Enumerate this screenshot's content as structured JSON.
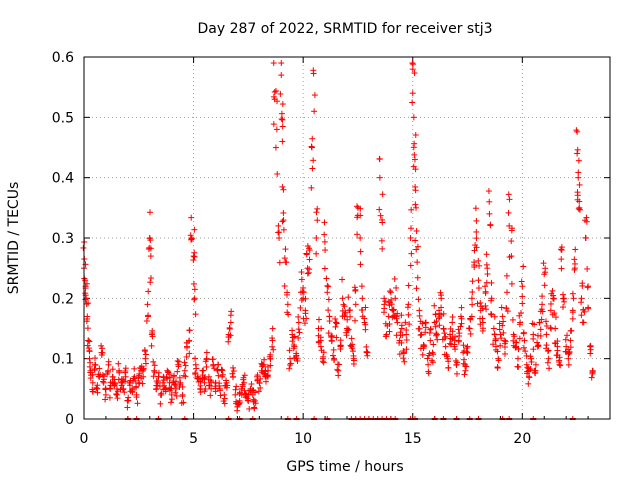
{
  "chart_data": {
    "type": "scatter",
    "title": "Day 287 of 2022, SRMTID for receiver stj3",
    "xlabel": "GPS time / hours",
    "ylabel": "SRMTID / TECUs",
    "xlim": [
      0,
      24
    ],
    "ylim": [
      0,
      0.6
    ],
    "xticks": [
      0,
      5,
      10,
      15,
      20
    ],
    "xtick_labels": [
      "0",
      "5",
      "10",
      "15",
      "20"
    ],
    "yticks": [
      0,
      0.1,
      0.2,
      0.3,
      0.4,
      0.5,
      0.6
    ],
    "ytick_labels": [
      "0",
      "0.1",
      "0.2",
      "0.3",
      "0.4",
      "0.5",
      "0.6"
    ],
    "grid": true,
    "marker": "+",
    "color": "#ff0000",
    "series": [
      {
        "name": "SRMTID",
        "points": [
          [
            0.0,
            0.25
          ],
          [
            0.05,
            0.23
          ],
          [
            0.1,
            0.2
          ],
          [
            0.15,
            0.17
          ],
          [
            0.2,
            0.13
          ],
          [
            0.25,
            0.1
          ],
          [
            0.3,
            0.08
          ],
          [
            0.4,
            0.06
          ],
          [
            0.5,
            0.09
          ],
          [
            0.6,
            0.05
          ],
          [
            0.7,
            0.07
          ],
          [
            0.8,
            0.11
          ],
          [
            0.9,
            0.06
          ],
          [
            1.0,
            0.04
          ],
          [
            1.1,
            0.08
          ],
          [
            1.2,
            0.05
          ],
          [
            1.3,
            0.07
          ],
          [
            1.4,
            0.06
          ],
          [
            1.5,
            0.04
          ],
          [
            1.6,
            0.08
          ],
          [
            1.7,
            0.06
          ],
          [
            1.8,
            0.05
          ],
          [
            1.9,
            0.07
          ],
          [
            2.0,
            0.03
          ],
          [
            2.1,
            0.06
          ],
          [
            2.2,
            0.05
          ],
          [
            2.3,
            0.07
          ],
          [
            2.4,
            0.04
          ],
          [
            2.5,
            0.06
          ],
          [
            2.6,
            0.08
          ],
          [
            2.7,
            0.07
          ],
          [
            2.8,
            0.1
          ],
          [
            2.9,
            0.19
          ],
          [
            3.0,
            0.3
          ],
          [
            3.05,
            0.27
          ],
          [
            3.1,
            0.14
          ],
          [
            3.2,
            0.08
          ],
          [
            3.3,
            0.05
          ],
          [
            3.4,
            0.07
          ],
          [
            3.5,
            0.04
          ],
          [
            3.6,
            0.06
          ],
          [
            3.7,
            0.05
          ],
          [
            3.8,
            0.08
          ],
          [
            3.9,
            0.06
          ],
          [
            4.0,
            0.04
          ],
          [
            4.1,
            0.07
          ],
          [
            4.2,
            0.05
          ],
          [
            4.3,
            0.09
          ],
          [
            4.4,
            0.06
          ],
          [
            4.5,
            0.04
          ],
          [
            4.6,
            0.08
          ],
          [
            4.7,
            0.12
          ],
          [
            4.8,
            0.13
          ],
          [
            4.9,
            0.3
          ],
          [
            5.0,
            0.27
          ],
          [
            5.05,
            0.2
          ],
          [
            5.1,
            0.09
          ],
          [
            5.2,
            0.07
          ],
          [
            5.3,
            0.05
          ],
          [
            5.4,
            0.08
          ],
          [
            5.5,
            0.06
          ],
          [
            5.6,
            0.1
          ],
          [
            5.7,
            0.07
          ],
          [
            5.8,
            0.05
          ],
          [
            5.9,
            0.09
          ],
          [
            6.0,
            0.06
          ],
          [
            6.1,
            0.08
          ],
          [
            6.2,
            0.05
          ],
          [
            6.3,
            0.07
          ],
          [
            6.4,
            0.04
          ],
          [
            6.5,
            0.06
          ],
          [
            6.6,
            0.14
          ],
          [
            6.7,
            0.16
          ],
          [
            6.8,
            0.07
          ],
          [
            6.9,
            0.04
          ],
          [
            7.0,
            0.02
          ],
          [
            7.1,
            0.03
          ],
          [
            7.2,
            0.05
          ],
          [
            7.3,
            0.06
          ],
          [
            7.4,
            0.04
          ],
          [
            7.5,
            0.03
          ],
          [
            7.6,
            0.05
          ],
          [
            7.7,
            0.04
          ],
          [
            7.8,
            0.03
          ],
          [
            7.9,
            0.07
          ],
          [
            8.0,
            0.06
          ],
          [
            8.1,
            0.08
          ],
          [
            8.2,
            0.09
          ],
          [
            8.3,
            0.07
          ],
          [
            8.4,
            0.08
          ],
          [
            8.5,
            0.1
          ],
          [
            8.6,
            0.13
          ],
          [
            8.7,
            0.53
          ],
          [
            8.8,
            0.48
          ],
          [
            8.9,
            0.3
          ],
          [
            9.0,
            0.57
          ],
          [
            9.05,
            0.46
          ],
          [
            9.1,
            0.38
          ],
          [
            9.2,
            0.26
          ],
          [
            9.3,
            0.19
          ],
          [
            9.4,
            0.1
          ],
          [
            9.5,
            0.14
          ],
          [
            9.6,
            0.12
          ],
          [
            9.7,
            0.1
          ],
          [
            9.8,
            0.16
          ],
          [
            9.9,
            0.21
          ],
          [
            10.0,
            0.2
          ],
          [
            10.1,
            0.18
          ],
          [
            10.2,
            0.25
          ],
          [
            10.3,
            0.28
          ],
          [
            10.4,
            0.45
          ],
          [
            10.5,
            0.51
          ],
          [
            10.6,
            0.3
          ],
          [
            10.7,
            0.15
          ],
          [
            10.8,
            0.13
          ],
          [
            10.9,
            0.1
          ],
          [
            11.0,
            0.28
          ],
          [
            11.1,
            0.21
          ],
          [
            11.2,
            0.17
          ],
          [
            11.3,
            0.13
          ],
          [
            11.4,
            0.1
          ],
          [
            11.5,
            0.16
          ],
          [
            11.6,
            0.08
          ],
          [
            11.7,
            0.12
          ],
          [
            11.8,
            0.2
          ],
          [
            11.9,
            0.17
          ],
          [
            12.0,
            0.15
          ],
          [
            12.1,
            0.18
          ],
          [
            12.2,
            0.12
          ],
          [
            12.3,
            0.1
          ],
          [
            12.4,
            0.19
          ],
          [
            12.5,
            0.35
          ],
          [
            12.6,
            0.3
          ],
          [
            12.7,
            0.2
          ],
          [
            12.8,
            0.16
          ],
          [
            12.9,
            0.11
          ],
          [
            13.5,
            0.4
          ],
          [
            13.6,
            0.33
          ],
          [
            13.7,
            0.19
          ],
          [
            13.8,
            0.14
          ],
          [
            13.9,
            0.17
          ],
          [
            14.0,
            0.21
          ],
          [
            14.1,
            0.18
          ],
          [
            14.2,
            0.2
          ],
          [
            14.3,
            0.16
          ],
          [
            14.4,
            0.13
          ],
          [
            14.5,
            0.15
          ],
          [
            14.6,
            0.11
          ],
          [
            14.7,
            0.14
          ],
          [
            14.8,
            0.19
          ],
          [
            14.9,
            0.3
          ],
          [
            15.0,
            0.54
          ],
          [
            15.05,
            0.5
          ],
          [
            15.1,
            0.43
          ],
          [
            15.15,
            0.35
          ],
          [
            15.2,
            0.26
          ],
          [
            15.3,
            0.18
          ],
          [
            15.4,
            0.14
          ],
          [
            15.5,
            0.12
          ],
          [
            15.6,
            0.16
          ],
          [
            15.7,
            0.09
          ],
          [
            15.8,
            0.13
          ],
          [
            15.9,
            0.11
          ],
          [
            16.0,
            0.16
          ],
          [
            16.1,
            0.14
          ],
          [
            16.2,
            0.18
          ],
          [
            16.3,
            0.2
          ],
          [
            16.4,
            0.15
          ],
          [
            16.5,
            0.12
          ],
          [
            16.6,
            0.1
          ],
          [
            16.7,
            0.14
          ],
          [
            16.8,
            0.16
          ],
          [
            16.9,
            0.12
          ],
          [
            17.0,
            0.09
          ],
          [
            17.1,
            0.13
          ],
          [
            17.2,
            0.17
          ],
          [
            17.3,
            0.11
          ],
          [
            17.4,
            0.08
          ],
          [
            17.5,
            0.12
          ],
          [
            17.6,
            0.15
          ],
          [
            17.7,
            0.2
          ],
          [
            17.8,
            0.26
          ],
          [
            17.9,
            0.31
          ],
          [
            18.0,
            0.23
          ],
          [
            18.1,
            0.18
          ],
          [
            18.2,
            0.16
          ],
          [
            18.3,
            0.22
          ],
          [
            18.4,
            0.25
          ],
          [
            18.5,
            0.34
          ],
          [
            18.6,
            0.2
          ],
          [
            18.7,
            0.15
          ],
          [
            18.8,
            0.12
          ],
          [
            18.9,
            0.1
          ],
          [
            19.0,
            0.14
          ],
          [
            19.1,
            0.17
          ],
          [
            19.2,
            0.13
          ],
          [
            19.3,
            0.21
          ],
          [
            19.4,
            0.32
          ],
          [
            19.5,
            0.27
          ],
          [
            19.6,
            0.14
          ],
          [
            19.7,
            0.12
          ],
          [
            19.8,
            0.1
          ],
          [
            19.9,
            0.16
          ],
          [
            20.0,
            0.22
          ],
          [
            20.1,
            0.13
          ],
          [
            20.2,
            0.09
          ],
          [
            20.3,
            0.07
          ],
          [
            20.4,
            0.1
          ],
          [
            20.5,
            0.14
          ],
          [
            20.6,
            0.08
          ],
          [
            20.7,
            0.12
          ],
          [
            20.8,
            0.16
          ],
          [
            20.9,
            0.19
          ],
          [
            21.0,
            0.24
          ],
          [
            21.1,
            0.14
          ],
          [
            21.2,
            0.1
          ],
          [
            21.3,
            0.18
          ],
          [
            21.4,
            0.2
          ],
          [
            21.5,
            0.15
          ],
          [
            21.6,
            0.12
          ],
          [
            21.7,
            0.09
          ],
          [
            21.8,
            0.28
          ],
          [
            21.9,
            0.2
          ],
          [
            22.0,
            0.12
          ],
          [
            22.1,
            0.1
          ],
          [
            22.2,
            0.13
          ],
          [
            22.3,
            0.18
          ],
          [
            22.4,
            0.25
          ],
          [
            22.5,
            0.44
          ],
          [
            22.55,
            0.4
          ],
          [
            22.6,
            0.35
          ],
          [
            22.7,
            0.2
          ],
          [
            22.8,
            0.16
          ],
          [
            22.9,
            0.3
          ],
          [
            23.0,
            0.22
          ],
          [
            23.1,
            0.12
          ],
          [
            23.2,
            0.08
          ]
        ]
      }
    ],
    "zero_points_x": [
      2.0,
      2.4,
      3.4,
      4.6,
      6.6,
      7.1,
      7.7,
      9.3,
      9.7,
      10.5,
      11.1,
      12.2,
      12.4,
      12.6,
      12.8,
      13.0,
      13.2,
      13.4,
      13.6,
      13.8,
      14.0,
      14.2,
      14.9,
      15.1,
      16.0,
      16.4,
      17.0,
      17.6,
      18.0,
      19.1,
      19.4,
      20.5,
      22.3
    ]
  }
}
